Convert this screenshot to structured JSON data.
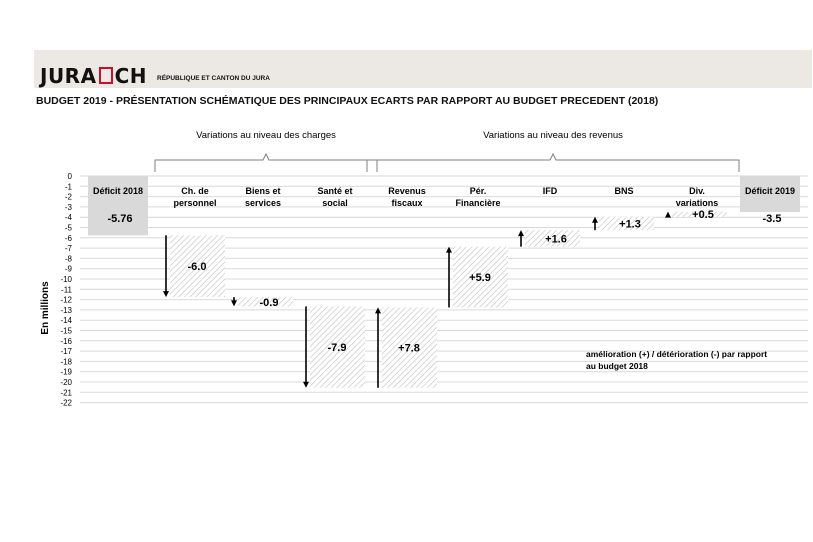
{
  "header": {
    "logo_text": "JURA CH",
    "logo_subtitle": "RÉPUBLIQUE ET CANTON DU JURA",
    "title": "BUDGET 2019  -  PRÉSENTATION SCHÉMATIQUE DES PRINCIPAUX ECARTS PAR RAPPORT AU BUDGET PRECEDENT (2018)"
  },
  "chart_data": {
    "type": "bar",
    "subtype": "waterfall",
    "ylabel": "En millions",
    "ylim": [
      -22,
      0
    ],
    "yticks": [
      0,
      -1,
      -2,
      -3,
      -4,
      -5,
      -6,
      -7,
      -8,
      -9,
      -10,
      -11,
      -12,
      -13,
      -14,
      -15,
      -16,
      -17,
      -18,
      -19,
      -20,
      -21,
      -22
    ],
    "grid": true,
    "groups": [
      {
        "label": "Variations au niveau des charges",
        "from": 1,
        "to": 3
      },
      {
        "label": "Variations au niveau des revenus",
        "from": 4,
        "to": 8
      }
    ],
    "bars": [
      {
        "category": "Déficit 2018",
        "start": 0,
        "end": -5.76,
        "value_label": "-5.76",
        "kind": "total"
      },
      {
        "category": "Ch. de personnel",
        "start": -5.76,
        "end": -11.76,
        "value_label": "-6.0",
        "kind": "decrease"
      },
      {
        "category": "Biens et services",
        "start": -11.76,
        "end": -12.66,
        "value_label": "-0.9",
        "kind": "decrease"
      },
      {
        "category": "Santé et social",
        "start": -12.66,
        "end": -20.56,
        "value_label": "-7.9",
        "kind": "decrease"
      },
      {
        "category": "Revenus fiscaux",
        "start": -20.56,
        "end": -12.76,
        "value_label": "+7.8",
        "kind": "increase"
      },
      {
        "category": "Pér. Financière",
        "start": -12.76,
        "end": -6.86,
        "value_label": "+5.9",
        "kind": "increase"
      },
      {
        "category": "IFD",
        "start": -6.86,
        "end": -5.26,
        "value_label": "+1.6",
        "kind": "increase"
      },
      {
        "category": "BNS",
        "start": -5.26,
        "end": -3.96,
        "value_label": "+1.3",
        "kind": "increase"
      },
      {
        "category": "Div. variations",
        "start": -3.96,
        "end": -3.46,
        "value_label": "+0.5",
        "kind": "increase"
      },
      {
        "category": "Déficit 2019",
        "start": 0,
        "end": -3.5,
        "value_label": "-3.5",
        "kind": "total"
      }
    ],
    "annotation": [
      "amélioration (+) / détérioration (-) par rapport",
      "au budget 2018"
    ],
    "colors": {
      "total": "#d9d9d9",
      "hatch": "#bfbfbf",
      "grid": "#d9d9d9",
      "arrow": "#000000"
    }
  }
}
